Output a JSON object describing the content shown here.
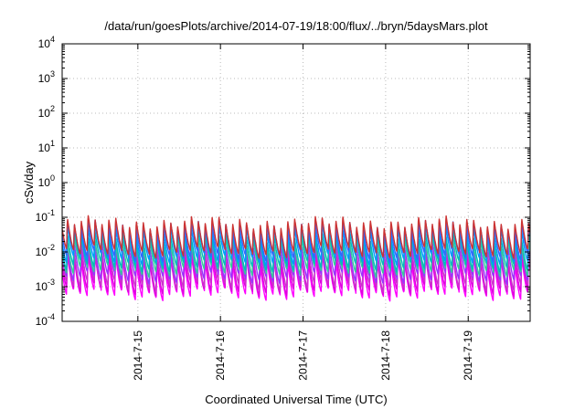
{
  "chart_data": {
    "type": "line",
    "title": "/data/run/goesPlots/archive/2014-07-19/18:00/flux/../bryn/5daysMars.plot",
    "xlabel": "Coordinated Universal Time (UTC)",
    "ylabel": "cSv/day",
    "yscale": "log",
    "ylim": [
      0.0001,
      10000
    ],
    "xlim": [
      "2014-07-14T02:00",
      "2014-07-19T18:00"
    ],
    "x_ticks": [
      "2014-7-15",
      "2014-7-16",
      "2014-7-17",
      "2014-7-18",
      "2014-7-19"
    ],
    "y_ticks": [
      {
        "base": "10",
        "exp": "4"
      },
      {
        "base": "10",
        "exp": "3"
      },
      {
        "base": "10",
        "exp": "2"
      },
      {
        "base": "10",
        "exp": "1"
      },
      {
        "base": "10",
        "exp": "0"
      },
      {
        "base": "10",
        "exp": "-1"
      },
      {
        "base": "10",
        "exp": "-2"
      },
      {
        "base": "10",
        "exp": "-3"
      },
      {
        "base": "10",
        "exp": "-4"
      }
    ],
    "grid": true,
    "legend": "none",
    "cycles_per_day": 12,
    "series": [
      {
        "color": "#ff00ff",
        "peak": 0.006,
        "trough": 0.0006
      },
      {
        "color": "#e000e0",
        "peak": 0.008,
        "trough": 0.0008
      },
      {
        "color": "#cc33cc",
        "peak": 0.011,
        "trough": 0.0011
      },
      {
        "color": "#9933ff",
        "peak": 0.016,
        "trough": 0.0018
      },
      {
        "color": "#33cc99",
        "peak": 0.022,
        "trough": 0.0028
      },
      {
        "color": "#00bbbb",
        "peak": 0.03,
        "trough": 0.004
      },
      {
        "color": "#0099ff",
        "peak": 0.045,
        "trough": 0.006
      },
      {
        "color": "#3366ff",
        "peak": 0.06,
        "trough": 0.008
      },
      {
        "color": "#cc3333",
        "peak": 0.075,
        "trough": 0.01
      }
    ]
  }
}
